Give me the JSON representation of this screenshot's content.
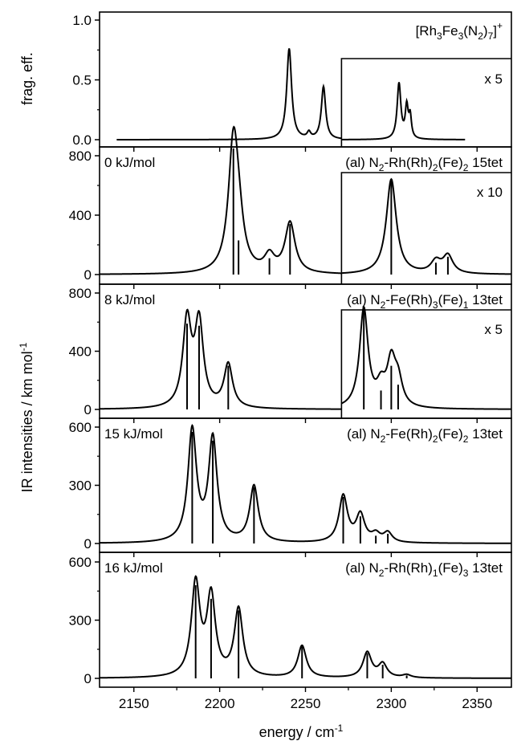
{
  "x_axis": {
    "label_main": "energy / cm",
    "label_sup": "-1",
    "range": [
      2130,
      2370
    ],
    "ticks": [
      2150,
      2200,
      2250,
      2300,
      2350
    ],
    "tick_labels": [
      "2150",
      "2200",
      "2250",
      "2300",
      "2350"
    ]
  },
  "y_axis": {
    "shared_label_main": "IR intensities / km mol",
    "shared_label_sup": "-1",
    "top_label": "frag. eff."
  },
  "chart_data": [
    {
      "type": "line",
      "panel": "experiment",
      "ylabel": "frag. eff.",
      "ylim": [
        -0.1,
        1.1
      ],
      "yticks": [
        0.0,
        0.5,
        1.0
      ],
      "ytick_labels": [
        "0.0",
        "0.5",
        "1.0"
      ],
      "label_parts": [
        "[Rh",
        "3",
        "Fe",
        "3",
        "(N",
        "2",
        ")",
        "7",
        "]",
        "+"
      ],
      "scale_label": "x 5",
      "scale_start": 2271,
      "scale_factor": 5,
      "series": [
        {
          "name": "experiment",
          "x_range": [
            2140,
            2343
          ],
          "peaks": [
            [
              2240.5,
              0.76,
              1.7
            ],
            [
              2252,
              0.05,
              1.2
            ],
            [
              2260.5,
              0.44,
              1.5
            ],
            [
              2304.5,
              0.093,
              1.3
            ],
            [
              2309,
              0.052,
              1.0
            ],
            [
              2311,
              0.036,
              0.9
            ]
          ]
        }
      ]
    },
    {
      "type": "line",
      "panel": "isomer-1",
      "energy_label": "0 kJ/mol",
      "label_parts": [
        "(al) N",
        "2",
        "-Rh(Rh)",
        "2",
        "(Fe)",
        "2",
        " 15tet"
      ],
      "ylim": [
        -30,
        980
      ],
      "yticks": [
        0,
        400,
        800
      ],
      "ytick_labels": [
        "0",
        "400",
        "800"
      ],
      "scale_label": "x 10",
      "scale_start": 2271,
      "scale_factor": 10,
      "sticks": [
        [
          2208,
          850
        ],
        [
          2211,
          230
        ],
        [
          2229,
          110
        ],
        [
          2241,
          340
        ],
        [
          2300,
          64
        ],
        [
          2326,
          8
        ],
        [
          2333,
          12
        ]
      ],
      "fwhm": 3.5
    },
    {
      "type": "line",
      "panel": "isomer-2",
      "energy_label": "8 kJ/mol",
      "label_parts": [
        "(al) N",
        "2",
        "-Fe(Rh)",
        "3",
        "(Fe)",
        "1",
        " 13tet"
      ],
      "ylim": [
        -30,
        980
      ],
      "yticks": [
        0,
        400,
        800
      ],
      "ytick_labels": [
        "0",
        "400",
        "800"
      ],
      "scale_label": "x 5",
      "scale_start": 2271,
      "scale_factor": 5,
      "sticks": [
        [
          2181,
          590
        ],
        [
          2188,
          575
        ],
        [
          2205,
          300
        ],
        [
          2284,
          136
        ],
        [
          2294,
          26
        ],
        [
          2300,
          60
        ],
        [
          2304,
          34
        ]
      ],
      "fwhm": 3.0
    },
    {
      "type": "line",
      "panel": "isomer-3",
      "energy_label": "15 kJ/mol",
      "label_parts": [
        "(al) N",
        "2",
        "-Fe(Rh)",
        "2",
        "(Fe)",
        "2",
        " 13tet"
      ],
      "ylim": [
        -20,
        730
      ],
      "yticks": [
        0,
        300,
        600
      ],
      "ytick_labels": [
        "0",
        "300",
        "600"
      ],
      "sticks": [
        [
          2184,
          575
        ],
        [
          2196,
          530
        ],
        [
          2220,
          290
        ],
        [
          2272,
          240
        ],
        [
          2282,
          140
        ],
        [
          2291,
          40
        ],
        [
          2298,
          50
        ]
      ],
      "fwhm": 3.0
    },
    {
      "type": "line",
      "panel": "isomer-4",
      "energy_label": "16 kJ/mol",
      "label_parts": [
        "(al) N",
        "2",
        "-Rh(Rh)",
        "1",
        "(Fe)",
        "3",
        " 13tet"
      ],
      "ylim": [
        -20,
        730
      ],
      "yticks": [
        0,
        300,
        600
      ],
      "ytick_labels": [
        "0",
        "300",
        "600"
      ],
      "sticks": [
        [
          2186,
          480
        ],
        [
          2195,
          410
        ],
        [
          2211,
          350
        ],
        [
          2248,
          165
        ],
        [
          2286,
          130
        ],
        [
          2295,
          70
        ],
        [
          2309,
          15
        ]
      ],
      "fwhm": 3.0
    }
  ]
}
